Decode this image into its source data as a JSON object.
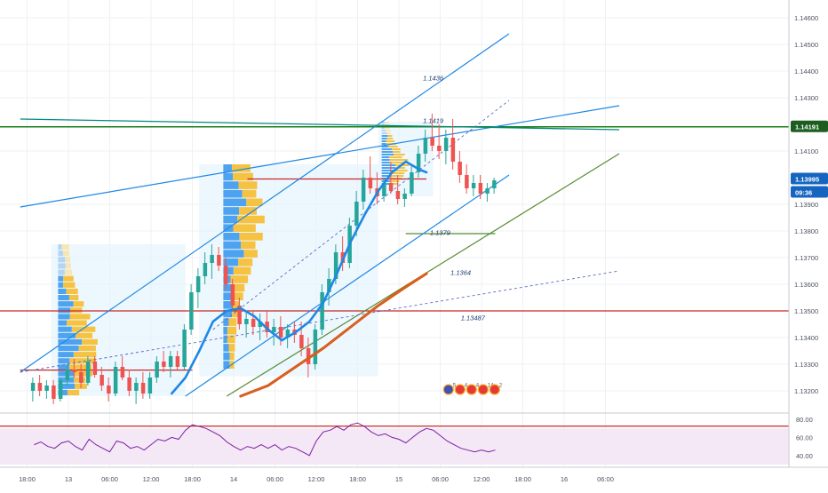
{
  "chart_data": {
    "type": "candlestick",
    "main_pane": {
      "y_range": [
        1.1315,
        1.1465
      ],
      "y_ticks": [
        "1.14600",
        "1.14500",
        "1.14400",
        "1.14300",
        "1.14100",
        "1.13900",
        "1.13800",
        "1.13700",
        "1.13600",
        "1.13500",
        "1.13400",
        "1.13300",
        "1.13200"
      ],
      "price_badges": [
        {
          "label": "1.14191",
          "price": 1.14191,
          "bg": "#1b5e20",
          "fg": "#ffffff"
        },
        {
          "label": "1.13995",
          "price": 1.13995,
          "bg": "#1565c0",
          "fg": "#ffffff"
        },
        {
          "label": "09:36",
          "price": 1.13945,
          "bg": "#1565c0",
          "fg": "#ffffff"
        }
      ],
      "level_labels": [
        {
          "text": "1.1436",
          "x_hour": 56.5,
          "price": 1.14365
        },
        {
          "text": "1.1419",
          "x_hour": 56.5,
          "price": 1.14205
        },
        {
          "text": "1.1379",
          "x_hour": 57.5,
          "price": 1.13785
        },
        {
          "text": "1.1364",
          "x_hour": 60.5,
          "price": 1.13635
        },
        {
          "text": "1.13487",
          "x_hour": 62,
          "price": 1.13465
        }
      ],
      "horizontal_lines": [
        {
          "price": 1.14191,
          "color": "#1b7f1b",
          "width": 1.5
        },
        {
          "price": 1.135,
          "color": "#c62828",
          "width": 1.2
        },
        {
          "price": 1.13278,
          "color": "#c62828",
          "width": 1.2,
          "from_hour": -2,
          "to_hour": 23
        },
        {
          "price": 1.13995,
          "color": "#c62828",
          "width": 1.2,
          "from_hour": 31,
          "to_hour": 57
        },
        {
          "price": 1.1379,
          "color": "#558b2f",
          "width": 1.2,
          "from_hour": 54,
          "to_hour": 67
        }
      ],
      "trend_lines": [
        {
          "x1": -2,
          "p1": 1.1327,
          "x2": 69,
          "p2": 1.1454,
          "color": "#1e88e5",
          "width": 1.2,
          "dash": false
        },
        {
          "x1": 22,
          "p1": 1.1318,
          "x2": 69,
          "p2": 1.1401,
          "color": "#1e88e5",
          "width": 1.2,
          "dash": false
        },
        {
          "x1": -2,
          "p1": 1.1389,
          "x2": 85,
          "p2": 1.1427,
          "color": "#1e88e5",
          "width": 1.2,
          "dash": false
        },
        {
          "x1": -2,
          "p1": 1.1422,
          "x2": 85,
          "p2": 1.1418,
          "color": "#00897b",
          "width": 1.3,
          "dash": false
        },
        {
          "x1": 28,
          "p1": 1.1318,
          "x2": 85,
          "p2": 1.1409,
          "color": "#558b2f",
          "width": 1.2,
          "dash": false
        },
        {
          "x1": -2,
          "p1": 1.1327,
          "x2": 85,
          "p2": 1.1365,
          "color": "#5c6bc0",
          "width": 0.9,
          "dash": true
        },
        {
          "x1": 26,
          "p1": 1.1343,
          "x2": 69,
          "p2": 1.1429,
          "color": "#5c6bc0",
          "width": 0.9,
          "dash": true
        }
      ],
      "channel_boxes": [
        {
          "x1": 2.5,
          "x2": 22,
          "p1": 1.1318,
          "p2": 1.1375
        },
        {
          "x1": 24,
          "x2": 50,
          "p1": 1.13255,
          "p2": 1.1405
        },
        {
          "x1": 50,
          "x2": 58,
          "p1": 1.1393,
          "p2": 1.1421
        }
      ],
      "volume_profiles": [
        {
          "x_hour": 3.5,
          "p_low": 1.1318,
          "p_high": 1.1375,
          "max_width_hours": 6
        },
        {
          "x_hour": 27.5,
          "p_low": 1.1328,
          "p_high": 1.1405,
          "max_width_hours": 6
        },
        {
          "x_hour": 50.5,
          "p_low": 1.1397,
          "p_high": 1.1421,
          "max_width_hours": 4
        }
      ],
      "ma_blue": [
        [
          20,
          1.1319
        ],
        [
          22,
          1.1325
        ],
        [
          24,
          1.1335
        ],
        [
          26,
          1.1346
        ],
        [
          28,
          1.135
        ],
        [
          30,
          1.1351
        ],
        [
          32,
          1.1348
        ],
        [
          34,
          1.1343
        ],
        [
          36,
          1.1339
        ],
        [
          38,
          1.1342
        ],
        [
          40,
          1.1346
        ],
        [
          42,
          1.1353
        ],
        [
          44,
          1.1364
        ],
        [
          46,
          1.1376
        ],
        [
          48,
          1.1386
        ],
        [
          50,
          1.1395
        ],
        [
          52,
          1.1402
        ],
        [
          54,
          1.1406
        ],
        [
          56,
          1.1403
        ],
        [
          57,
          1.1402
        ]
      ],
      "ma_orange": [
        [
          30,
          1.1318
        ],
        [
          34,
          1.1322
        ],
        [
          38,
          1.1329
        ],
        [
          42,
          1.1336
        ],
        [
          46,
          1.1344
        ],
        [
          50,
          1.1352
        ],
        [
          54,
          1.1359
        ],
        [
          57,
          1.1364
        ]
      ],
      "candles": [
        [
          1.132,
          1.1325,
          1.1316,
          1.1323
        ],
        [
          1.1323,
          1.1326,
          1.1318,
          1.132
        ],
        [
          1.132,
          1.1324,
          1.1317,
          1.1322
        ],
        [
          1.1322,
          1.1324,
          1.1315,
          1.1317
        ],
        [
          1.1317,
          1.1325,
          1.1316,
          1.1324
        ],
        [
          1.1324,
          1.133,
          1.1322,
          1.1328
        ],
        [
          1.1328,
          1.1332,
          1.1325,
          1.1327
        ],
        [
          1.1327,
          1.133,
          1.1321,
          1.1323
        ],
        [
          1.1323,
          1.1333,
          1.1322,
          1.1331
        ],
        [
          1.1331,
          1.1333,
          1.1325,
          1.1326
        ],
        [
          1.1326,
          1.1329,
          1.132,
          1.1322
        ],
        [
          1.1322,
          1.1325,
          1.1316,
          1.1319
        ],
        [
          1.1319,
          1.1331,
          1.1318,
          1.1329
        ],
        [
          1.1329,
          1.1333,
          1.1324,
          1.1325
        ],
        [
          1.1325,
          1.1328,
          1.1318,
          1.132
        ],
        [
          1.132,
          1.1325,
          1.1315,
          1.1323
        ],
        [
          1.1323,
          1.1327,
          1.1317,
          1.1319
        ],
        [
          1.1319,
          1.1327,
          1.1317,
          1.1325
        ],
        [
          1.1325,
          1.1333,
          1.1323,
          1.1331
        ],
        [
          1.1331,
          1.1335,
          1.1327,
          1.1329
        ],
        [
          1.1329,
          1.1335,
          1.1325,
          1.1333
        ],
        [
          1.1333,
          1.1335,
          1.1328,
          1.1329
        ],
        [
          1.1329,
          1.1345,
          1.1328,
          1.1343
        ],
        [
          1.1343,
          1.136,
          1.1341,
          1.1357
        ],
        [
          1.1357,
          1.1366,
          1.1351,
          1.1363
        ],
        [
          1.1363,
          1.1372,
          1.136,
          1.1368
        ],
        [
          1.1368,
          1.1375,
          1.1362,
          1.1371
        ],
        [
          1.1371,
          1.1374,
          1.1365,
          1.1367
        ],
        [
          1.1367,
          1.137,
          1.1358,
          1.136
        ],
        [
          1.136,
          1.1362,
          1.135,
          1.1352
        ],
        [
          1.1352,
          1.1355,
          1.1343,
          1.1345
        ],
        [
          1.1345,
          1.135,
          1.134,
          1.1347
        ],
        [
          1.1347,
          1.135,
          1.1341,
          1.1344
        ],
        [
          1.1344,
          1.1349,
          1.1339,
          1.1346
        ],
        [
          1.1346,
          1.135,
          1.134,
          1.1342
        ],
        [
          1.1342,
          1.1347,
          1.1337,
          1.1344
        ],
        [
          1.1344,
          1.1348,
          1.1337,
          1.134
        ],
        [
          1.134,
          1.1345,
          1.1336,
          1.1343
        ],
        [
          1.1343,
          1.1346,
          1.1338,
          1.1341
        ],
        [
          1.1341,
          1.1346,
          1.1333,
          1.1336
        ],
        [
          1.1336,
          1.134,
          1.1325,
          1.133
        ],
        [
          1.133,
          1.1345,
          1.1328,
          1.1343
        ],
        [
          1.1343,
          1.136,
          1.1341,
          1.1357
        ],
        [
          1.1357,
          1.1366,
          1.1352,
          1.1362
        ],
        [
          1.1362,
          1.1375,
          1.136,
          1.1372
        ],
        [
          1.1372,
          1.1378,
          1.1365,
          1.1368
        ],
        [
          1.1368,
          1.1385,
          1.1366,
          1.1382
        ],
        [
          1.1382,
          1.1395,
          1.1378,
          1.1391
        ],
        [
          1.1391,
          1.1403,
          1.1388,
          1.14
        ],
        [
          1.14,
          1.1408,
          1.1394,
          1.1396
        ],
        [
          1.1396,
          1.1402,
          1.139,
          1.1393
        ],
        [
          1.1393,
          1.14,
          1.1391,
          1.1398
        ],
        [
          1.1398,
          1.1406,
          1.1394,
          1.1395
        ],
        [
          1.1395,
          1.1401,
          1.139,
          1.1392
        ],
        [
          1.1392,
          1.1396,
          1.1389,
          1.1394
        ],
        [
          1.1394,
          1.1405,
          1.1393,
          1.1402
        ],
        [
          1.1402,
          1.1412,
          1.14,
          1.1409
        ],
        [
          1.1409,
          1.1418,
          1.1406,
          1.1415
        ],
        [
          1.1415,
          1.1424,
          1.141,
          1.1412
        ],
        [
          1.1412,
          1.142,
          1.1407,
          1.141
        ],
        [
          1.141,
          1.1418,
          1.1405,
          1.1415
        ],
        [
          1.1415,
          1.1422,
          1.1403,
          1.1406
        ],
        [
          1.1406,
          1.141,
          1.1398,
          1.1401
        ],
        [
          1.1401,
          1.1405,
          1.1394,
          1.1396
        ],
        [
          1.1396,
          1.1401,
          1.1393,
          1.1398
        ],
        [
          1.1398,
          1.1401,
          1.1392,
          1.1394
        ],
        [
          1.1394,
          1.1398,
          1.1391,
          1.1396
        ],
        [
          1.1396,
          1.14,
          1.1394,
          1.1399
        ]
      ]
    },
    "rsi_pane": {
      "y_range": [
        30,
        84
      ],
      "y_ticks": [
        "80.00",
        "60.00",
        "40.00"
      ],
      "band": [
        30,
        70
      ],
      "values": [
        52,
        55,
        50,
        48,
        54,
        56,
        50,
        46,
        58,
        52,
        48,
        44,
        56,
        54,
        48,
        50,
        46,
        52,
        58,
        56,
        60,
        58,
        68,
        74,
        72,
        70,
        66,
        62,
        55,
        50,
        46,
        50,
        48,
        52,
        48,
        52,
        46,
        50,
        48,
        44,
        40,
        56,
        66,
        68,
        72,
        68,
        74,
        76,
        72,
        66,
        62,
        64,
        60,
        58,
        54,
        60,
        66,
        70,
        68,
        62,
        56,
        52,
        48,
        46,
        44,
        46,
        44,
        46
      ],
      "horizontal_line": 72.5
    },
    "x_axis": {
      "ticks": [
        {
          "label": "18:00",
          "hour": -1
        },
        {
          "label": "13",
          "hour": 5
        },
        {
          "label": "06:00",
          "hour": 11
        },
        {
          "label": "12:00",
          "hour": 17
        },
        {
          "label": "18:00",
          "hour": 23
        },
        {
          "label": "14",
          "hour": 29
        },
        {
          "label": "06:00",
          "hour": 35
        },
        {
          "label": "12:00",
          "hour": 41
        },
        {
          "label": "18:00",
          "hour": 47
        },
        {
          "label": "15",
          "hour": 53
        },
        {
          "label": "06:00",
          "hour": 59
        },
        {
          "label": "12:00",
          "hour": 65
        },
        {
          "label": "18:00",
          "hour": 71
        },
        {
          "label": "16",
          "hour": 77
        },
        {
          "label": "06:00",
          "hour": 83
        }
      ]
    },
    "event_icons": {
      "labels": [
        "5",
        "4",
        "4",
        "14",
        "2"
      ],
      "x_hour": 60.2,
      "price": 1.13205
    }
  }
}
